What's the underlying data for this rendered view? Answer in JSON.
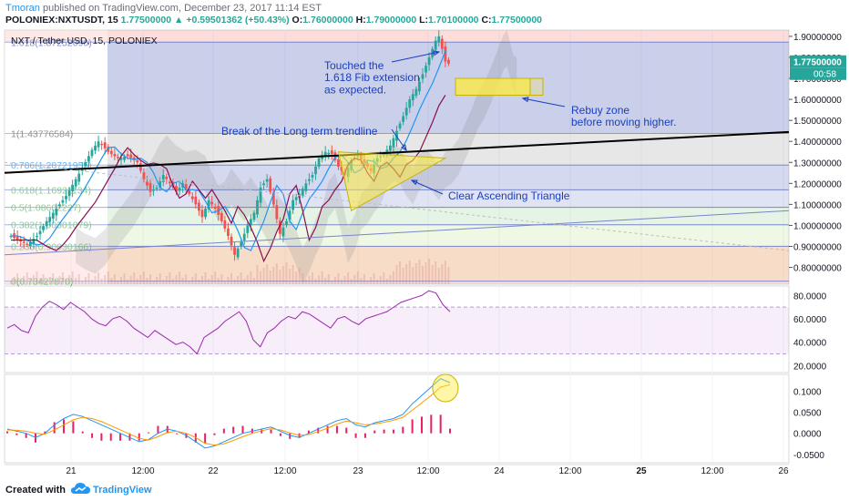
{
  "header": {
    "author": "Tmoran",
    "published_text": "published on TradingView.com, December 23, 2017 11:14 EST",
    "symbol": "POLONIEX:NXTUSDT, 15",
    "last": "1.77500000",
    "change": "+0.59501362 (+50.43%)",
    "ohlc": [
      {
        "label": "O:",
        "value": "1.76000000"
      },
      {
        "label": "H:",
        "value": "1.79000000"
      },
      {
        "label": "L:",
        "value": "1.70100000"
      },
      {
        "label": "C:",
        "value": "1.77500000"
      }
    ]
  },
  "chart_data": {
    "type": "candlestick",
    "title": "NXT / Tether USD, 15, POLONIEX",
    "price_axis": {
      "ticks": [
        "1.90000000",
        "1.80000000",
        "1.70000000",
        "1.60000000",
        "1.50000000",
        "1.40000000",
        "1.30000000",
        "1.20000000",
        "1.10000000",
        "1.00000000",
        "0.90000000",
        "0.80000000"
      ],
      "ylim": [
        0.72,
        1.93
      ],
      "last_price": "1.77500000",
      "countdown": "00:58"
    },
    "time_axis": {
      "ticks": [
        "21",
        "12:00",
        "22",
        "12:00",
        "23",
        "12:00",
        "24",
        "12:00",
        "25",
        "12:00",
        "26"
      ]
    },
    "fib_levels": [
      {
        "label": "1.618(1.87252090)",
        "value": 1.8725
      },
      {
        "label": "1(1.43776584)",
        "value": 1.4378
      },
      {
        "label": "0.786(1.28721955)",
        "value": 1.2872
      },
      {
        "label": "0.618(1.16921134)",
        "value": 1.1692
      },
      {
        "label": "0.5(1.08602227)",
        "value": 1.086
      },
      {
        "label": "0.382(1.00301079)",
        "value": 1.003
      },
      {
        "label": "0.236(0.90030166)",
        "value": 0.9003
      },
      {
        "label": "0(0.73427870)",
        "value": 0.7343
      }
    ],
    "price_path": [
      [
        0,
        0.96
      ],
      [
        3,
        0.93
      ],
      [
        6,
        0.91
      ],
      [
        9,
        0.95
      ],
      [
        12,
        1.02
      ],
      [
        15,
        1.08
      ],
      [
        18,
        1.14
      ],
      [
        21,
        1.22
      ],
      [
        24,
        1.3
      ],
      [
        26,
        1.36
      ],
      [
        28,
        1.4
      ],
      [
        31,
        1.35
      ],
      [
        34,
        1.32
      ],
      [
        37,
        1.33
      ],
      [
        40,
        1.3
      ],
      [
        42,
        1.22
      ],
      [
        44,
        1.16
      ],
      [
        46,
        1.18
      ],
      [
        48,
        1.24
      ],
      [
        50,
        1.2
      ],
      [
        52,
        1.16
      ],
      [
        54,
        1.2
      ],
      [
        56,
        1.15
      ],
      [
        58,
        1.1
      ],
      [
        60,
        1.04
      ],
      [
        62,
        1.12
      ],
      [
        64,
        1.08
      ],
      [
        66,
        1.02
      ],
      [
        68,
        0.95
      ],
      [
        70,
        0.86
      ],
      [
        72,
        0.92
      ],
      [
        74,
        1.0
      ],
      [
        76,
        1.06
      ],
      [
        78,
        1.18
      ],
      [
        80,
        1.22
      ],
      [
        82,
        1.1
      ],
      [
        84,
        0.96
      ],
      [
        86,
        1.02
      ],
      [
        88,
        1.12
      ],
      [
        90,
        1.15
      ],
      [
        92,
        1.2
      ],
      [
        94,
        1.24
      ],
      [
        96,
        1.32
      ],
      [
        98,
        1.35
      ],
      [
        100,
        1.34
      ],
      [
        102,
        1.28
      ],
      [
        104,
        1.24
      ],
      [
        106,
        1.31
      ],
      [
        108,
        1.33
      ],
      [
        110,
        1.3
      ],
      [
        112,
        1.26
      ],
      [
        114,
        1.32
      ],
      [
        116,
        1.34
      ],
      [
        118,
        1.38
      ],
      [
        120,
        1.45
      ],
      [
        122,
        1.52
      ],
      [
        124,
        1.6
      ],
      [
        126,
        1.65
      ],
      [
        128,
        1.72
      ],
      [
        130,
        1.8
      ],
      [
        132,
        1.88
      ],
      [
        133,
        1.9
      ],
      [
        135,
        1.78
      ],
      [
        136,
        1.77
      ]
    ],
    "rsi": {
      "ticks": [
        "80.0000",
        "60.0000",
        "40.0000",
        "20.0000"
      ],
      "band": [
        30,
        70
      ],
      "values": [
        52,
        55,
        50,
        48,
        62,
        70,
        75,
        72,
        68,
        74,
        70,
        66,
        60,
        56,
        54,
        60,
        62,
        58,
        52,
        48,
        44,
        50,
        46,
        42,
        38,
        40,
        36,
        30,
        44,
        48,
        52,
        58,
        62,
        66,
        58,
        42,
        36,
        48,
        52,
        58,
        62,
        60,
        66,
        64,
        60,
        56,
        52,
        60,
        62,
        58,
        55,
        60,
        62,
        64,
        66,
        70,
        74,
        76,
        78,
        80,
        84,
        82,
        72,
        66
      ]
    },
    "macd": {
      "ticks": [
        "0.1000",
        "0.0500",
        "0.0000",
        "-0.0500"
      ],
      "macd_line": [
        0.01,
        0.005,
        0.0,
        -0.01,
        0.0,
        0.02,
        0.035,
        0.045,
        0.04,
        0.03,
        0.02,
        0.01,
        0.0,
        -0.01,
        -0.02,
        -0.015,
        0.0,
        0.01,
        0.005,
        -0.005,
        -0.02,
        -0.035,
        -0.03,
        -0.02,
        -0.01,
        0.0,
        0.005,
        0.01,
        0.015,
        0.005,
        -0.005,
        -0.01,
        0.0,
        0.01,
        0.02,
        0.03,
        0.035,
        0.02,
        0.015,
        0.025,
        0.03,
        0.035,
        0.045,
        0.07,
        0.09,
        0.11,
        0.13,
        0.12
      ],
      "signal_line": [
        0.008,
        0.007,
        0.005,
        0.0,
        -0.002,
        0.008,
        0.02,
        0.032,
        0.038,
        0.035,
        0.028,
        0.018,
        0.008,
        -0.002,
        -0.012,
        -0.016,
        -0.008,
        0.002,
        0.005,
        0.0,
        -0.01,
        -0.024,
        -0.028,
        -0.025,
        -0.017,
        -0.008,
        0.0,
        0.006,
        0.011,
        0.008,
        0.001,
        -0.005,
        -0.003,
        0.004,
        0.012,
        0.022,
        0.029,
        0.025,
        0.02,
        0.022,
        0.026,
        0.031,
        0.038,
        0.055,
        0.072,
        0.09,
        0.11,
        0.115
      ]
    },
    "annotations": [
      {
        "text": "Touched the\n1.618 Fib extension\nas expected."
      },
      {
        "text": "Rebuy zone\nbefore moving higher."
      },
      {
        "text": "Break of the Long term trendline"
      },
      {
        "text": "Clear Ascending Triangle"
      }
    ],
    "colors": {
      "up": "#26a69a",
      "down": "#ef5350",
      "fib_blue": "#3f51b5",
      "annotation": "#1a3fbf",
      "rebuy_zone": "#ffeb3b",
      "rsi_line": "#9c27b0",
      "macd_line": "#2196f3",
      "signal_line": "#ff9800",
      "histogram": "#e91e63"
    }
  },
  "footer": {
    "created_with": "Created with",
    "brand": "TradingView"
  }
}
